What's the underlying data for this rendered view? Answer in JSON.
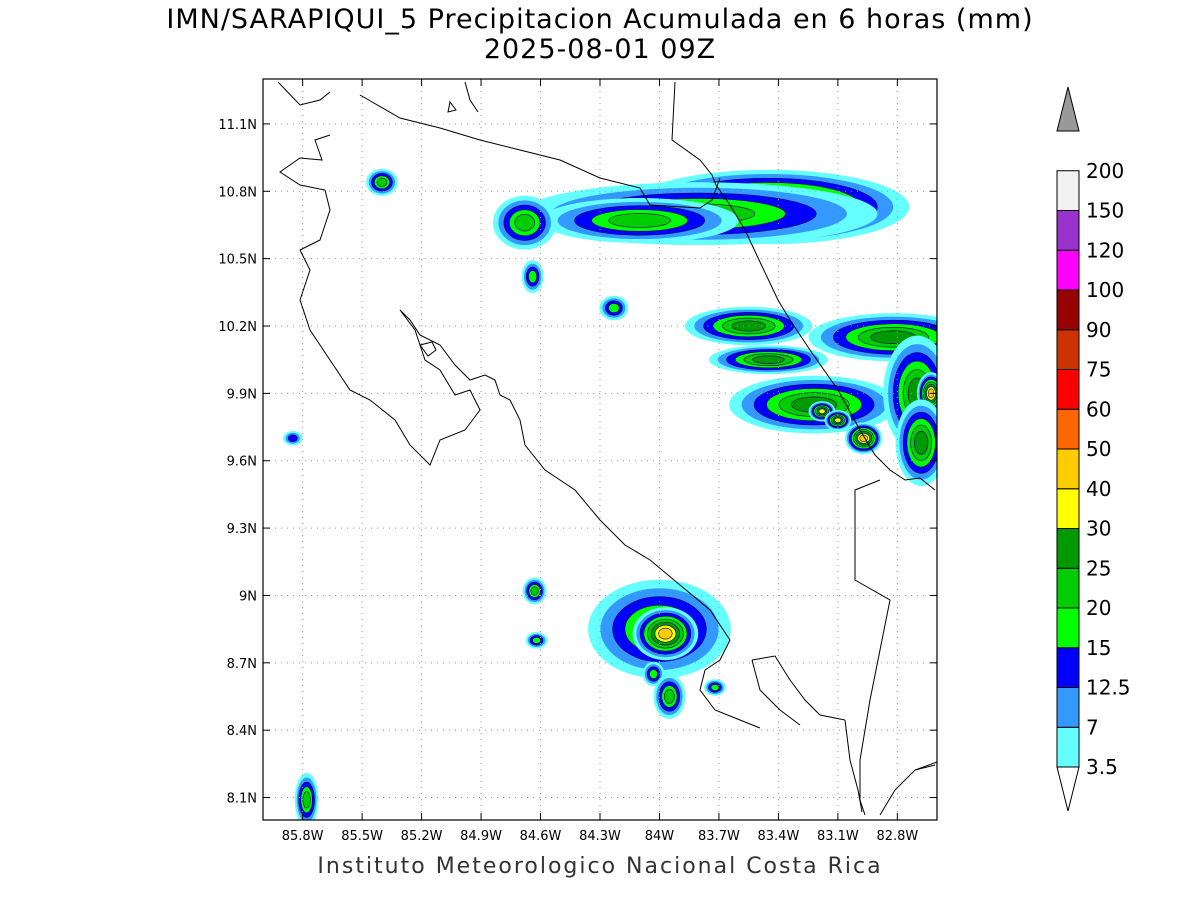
{
  "title": {
    "line1": "IMN/SARAPIQUI_5 Precipitacion Acumulada en 6 horas (mm)",
    "line2": "2025-08-01 09Z"
  },
  "footer": "Instituto Meteorologico Nacional Costa Rica",
  "map": {
    "lon_range": [
      -86.0,
      -82.6
    ],
    "lat_range": [
      8.0,
      11.3
    ],
    "lat_ticks": [
      "11.1N",
      "10.8N",
      "10.5N",
      "10.2N",
      "9.9N",
      "9.6N",
      "9.3N",
      "9N",
      "8.7N",
      "8.4N",
      "8.1N"
    ],
    "lat_values": [
      11.1,
      10.8,
      10.5,
      10.2,
      9.9,
      9.6,
      9.3,
      9.0,
      8.7,
      8.4,
      8.1
    ],
    "lon_ticks": [
      "85.8W",
      "85.5W",
      "85.2W",
      "84.9W",
      "84.6W",
      "84.3W",
      "84W",
      "83.7W",
      "83.4W",
      "83.1W",
      "82.8W"
    ],
    "lon_values": [
      -85.8,
      -85.5,
      -85.2,
      -84.9,
      -84.6,
      -84.3,
      -84.0,
      -83.7,
      -83.4,
      -83.1,
      -82.8
    ],
    "grid": "dotted"
  },
  "colorbar": {
    "levels": [
      "3.5",
      "7",
      "12.5",
      "15",
      "20",
      "25",
      "30",
      "40",
      "50",
      "60",
      "75",
      "90",
      "100",
      "120",
      "150",
      "200"
    ],
    "colors": [
      "#66ffff",
      "#3399ff",
      "#0000ff",
      "#00ff00",
      "#00cc00",
      "#009900",
      "#ffff00",
      "#ffcc00",
      "#ff6600",
      "#ff0000",
      "#cc3300",
      "#990000",
      "#ff00ff",
      "#9933cc",
      "#f2f2f2",
      "#999999"
    ],
    "extend": "both"
  },
  "precip_cells": [
    {
      "lon": -83.45,
      "lat": 10.73,
      "rx": 0.3,
      "ry": 0.07,
      "level": 7
    },
    {
      "lon": -83.8,
      "lat": 10.7,
      "rx": 0.45,
      "ry": 0.07,
      "level": 4
    },
    {
      "lon": -84.1,
      "lat": 10.67,
      "rx": 0.25,
      "ry": 0.05,
      "level": 4
    },
    {
      "lon": -84.68,
      "lat": 10.66,
      "rx": 0.08,
      "ry": 0.06,
      "level": 4
    },
    {
      "lon": -85.4,
      "lat": 10.84,
      "rx": 0.04,
      "ry": 0.03,
      "level": 4
    },
    {
      "lon": -84.64,
      "lat": 10.42,
      "rx": 0.03,
      "ry": 0.04,
      "level": 3
    },
    {
      "lon": -84.23,
      "lat": 10.28,
      "rx": 0.04,
      "ry": 0.03,
      "level": 3
    },
    {
      "lon": -83.55,
      "lat": 10.2,
      "rx": 0.15,
      "ry": 0.04,
      "level": 5
    },
    {
      "lon": -83.45,
      "lat": 10.05,
      "rx": 0.14,
      "ry": 0.03,
      "level": 5
    },
    {
      "lon": -83.22,
      "lat": 9.85,
      "rx": 0.2,
      "ry": 0.06,
      "level": 5
    },
    {
      "lon": -83.18,
      "lat": 9.82,
      "rx": 0.03,
      "ry": 0.02,
      "level": 6
    },
    {
      "lon": -83.1,
      "lat": 9.78,
      "rx": 0.03,
      "ry": 0.02,
      "level": 6
    },
    {
      "lon": -82.97,
      "lat": 9.7,
      "rx": 0.04,
      "ry": 0.03,
      "level": 7
    },
    {
      "lon": -82.82,
      "lat": 10.15,
      "rx": 0.2,
      "ry": 0.05,
      "level": 5
    },
    {
      "lon": -82.7,
      "lat": 9.9,
      "rx": 0.08,
      "ry": 0.12,
      "level": 5
    },
    {
      "lon": -82.63,
      "lat": 9.9,
      "rx": 0.03,
      "ry": 0.04,
      "level": 7
    },
    {
      "lon": -82.68,
      "lat": 9.68,
      "rx": 0.06,
      "ry": 0.09,
      "level": 5
    },
    {
      "lon": -84.0,
      "lat": 8.85,
      "rx": 0.18,
      "ry": 0.11,
      "level": 4
    },
    {
      "lon": -83.97,
      "lat": 8.83,
      "rx": 0.07,
      "ry": 0.05,
      "level": 7
    },
    {
      "lon": -84.63,
      "lat": 9.02,
      "rx": 0.03,
      "ry": 0.03,
      "level": 4
    },
    {
      "lon": -84.62,
      "lat": 8.8,
      "rx": 0.03,
      "ry": 0.02,
      "level": 3
    },
    {
      "lon": -84.03,
      "lat": 8.65,
      "rx": 0.03,
      "ry": 0.03,
      "level": 3
    },
    {
      "lon": -83.95,
      "lat": 8.55,
      "rx": 0.04,
      "ry": 0.05,
      "level": 4
    },
    {
      "lon": -83.72,
      "lat": 8.59,
      "rx": 0.03,
      "ry": 0.02,
      "level": 3
    },
    {
      "lon": -85.78,
      "lat": 8.09,
      "rx": 0.03,
      "ry": 0.06,
      "level": 4
    },
    {
      "lon": -85.85,
      "lat": 9.7,
      "rx": 0.03,
      "ry": 0.02,
      "level": 2
    }
  ]
}
